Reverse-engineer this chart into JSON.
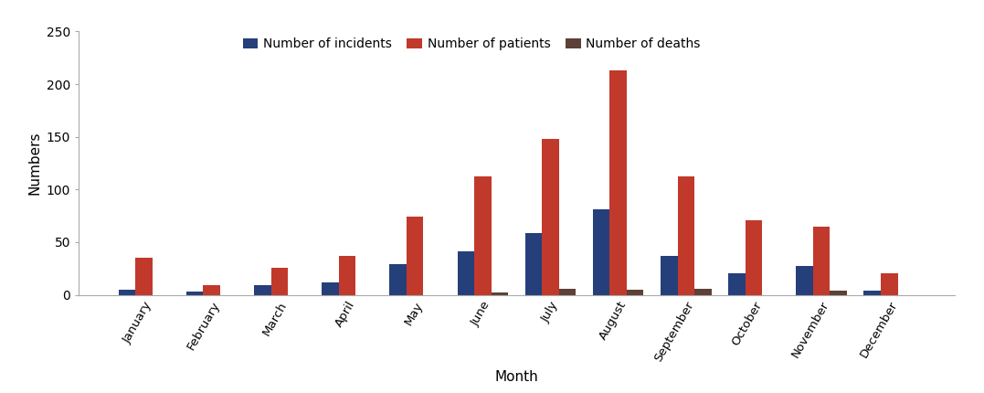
{
  "months": [
    "January",
    "February",
    "March",
    "April",
    "May",
    "June",
    "July",
    "August",
    "September",
    "October",
    "November",
    "December"
  ],
  "incidents": [
    5,
    3,
    9,
    12,
    29,
    41,
    59,
    81,
    37,
    20,
    27,
    4
  ],
  "patients": [
    35,
    9,
    26,
    37,
    74,
    112,
    148,
    213,
    112,
    71,
    65,
    20
  ],
  "deaths": [
    0,
    0,
    0,
    0,
    0,
    2,
    6,
    5,
    6,
    0,
    4,
    0
  ],
  "color_incidents": "#253f7a",
  "color_patients": "#c0392b",
  "color_deaths": "#5d4037",
  "ylabel": "Numbers",
  "xlabel": "Month",
  "legend_labels": [
    "Number of incidents",
    "Number of patients",
    "Number of deaths"
  ],
  "ylim": [
    0,
    250
  ],
  "yticks": [
    0,
    50,
    100,
    150,
    200,
    250
  ],
  "bar_width": 0.25,
  "figsize": [
    10.77,
    4.3
  ],
  "dpi": 100
}
